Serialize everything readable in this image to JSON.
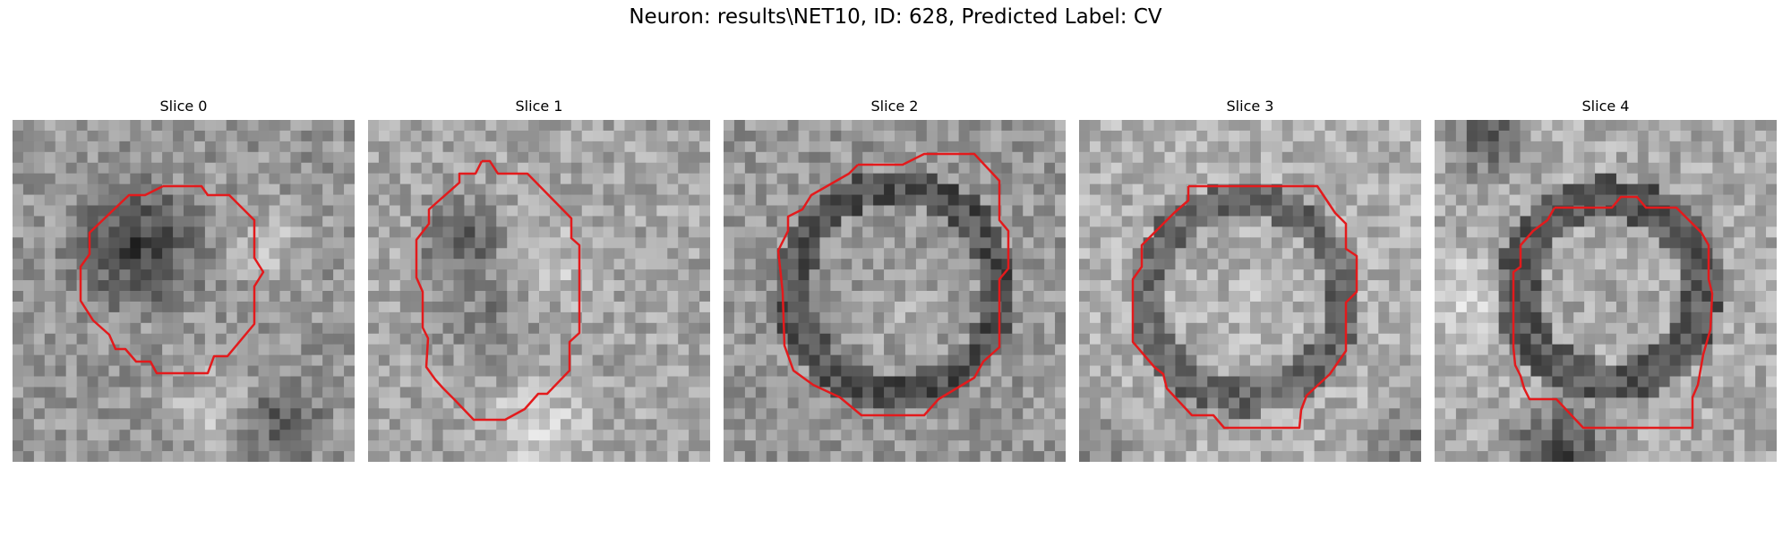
{
  "figure": {
    "title": "Neuron: results\\NET10, ID: 628, Predicted Label: CV"
  },
  "panels": [
    {
      "title": "Slice 0"
    },
    {
      "title": "Slice 1"
    },
    {
      "title": "Slice 2"
    },
    {
      "title": "Slice 3"
    },
    {
      "title": "Slice 4"
    }
  ],
  "colors": {
    "contour": "#e31a1c",
    "colormap": "gray"
  }
}
